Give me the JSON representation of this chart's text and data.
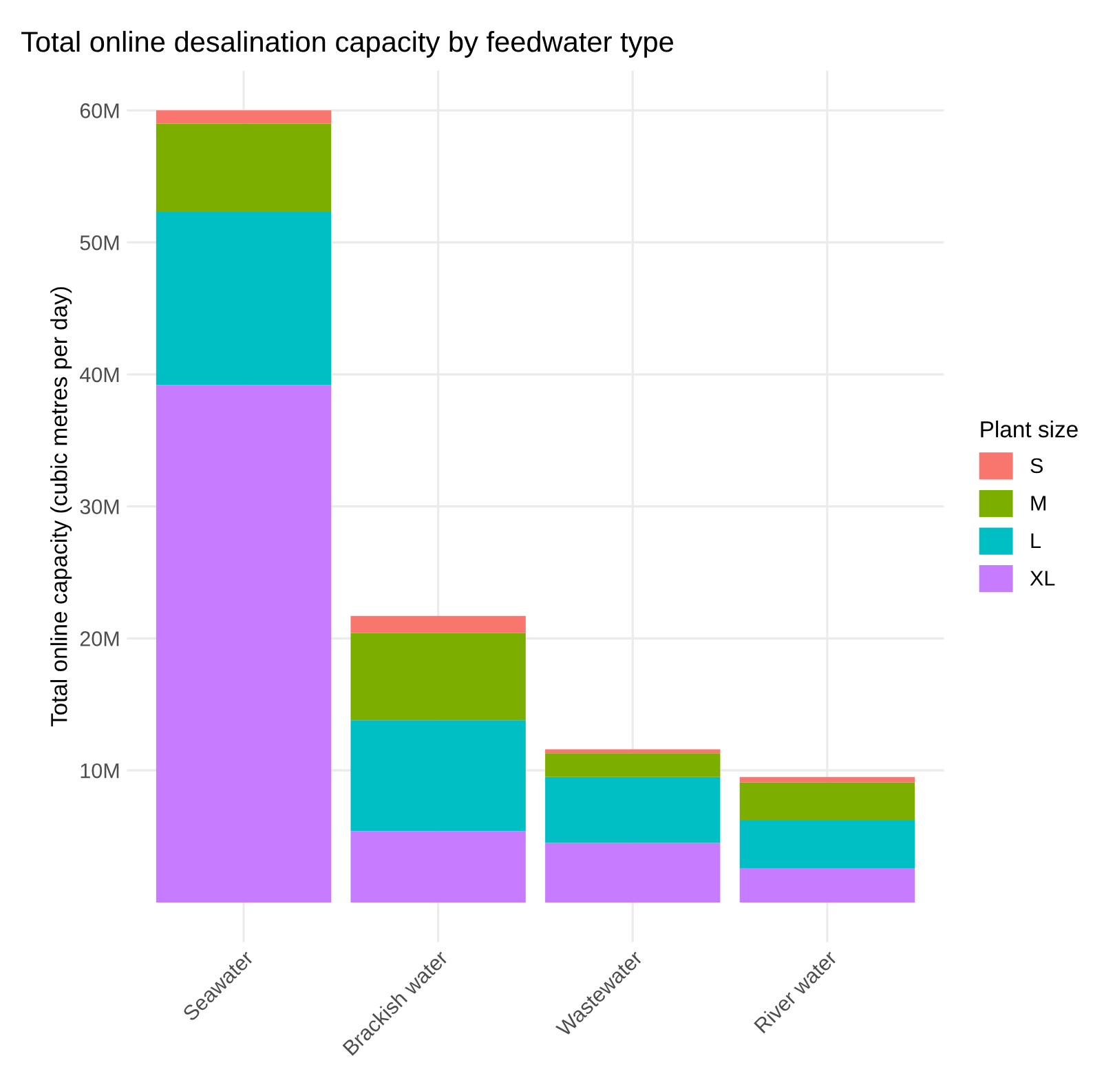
{
  "chart_data": {
    "type": "bar",
    "title": "Total online desalination capacity by feedwater type",
    "ylabel": "Total online capacity (cubic metres per day)",
    "legend_title": "Plant size",
    "categories": [
      "Seawater",
      "Brackish water",
      "Wastewater",
      "River water"
    ],
    "stacked": true,
    "series": [
      {
        "name": "XL",
        "color": "#c77cff",
        "values": [
          39.2,
          5.4,
          4.5,
          2.6
        ]
      },
      {
        "name": "L",
        "color": "#00bfc4",
        "values": [
          13.1,
          8.4,
          5.0,
          3.6
        ]
      },
      {
        "name": "M",
        "color": "#7cae00",
        "values": [
          6.7,
          6.6,
          1.8,
          2.9
        ]
      },
      {
        "name": "S",
        "color": "#f8766d",
        "values": [
          1.0,
          1.3,
          0.3,
          0.4
        ]
      }
    ],
    "ylim": [
      -3,
      63
    ],
    "yticks": [
      {
        "value": 10,
        "label": "10M"
      },
      {
        "value": 20,
        "label": "20M"
      },
      {
        "value": 30,
        "label": "30M"
      },
      {
        "value": 40,
        "label": "40M"
      },
      {
        "value": 50,
        "label": "50M"
      },
      {
        "value": 60,
        "label": "60M"
      }
    ],
    "grid": true,
    "legend": "right"
  }
}
